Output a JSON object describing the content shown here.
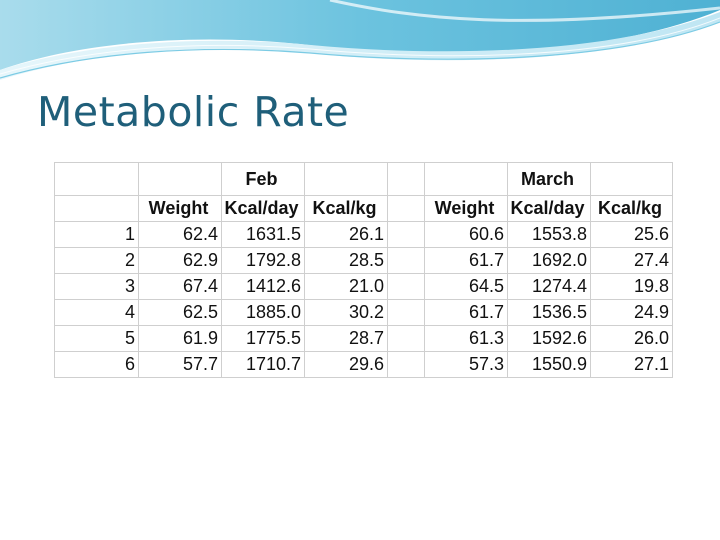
{
  "title": "Metabolic Rate",
  "table": {
    "groups": [
      "Feb",
      "March"
    ],
    "headers": {
      "feb": [
        "Weight",
        "Kcal/day",
        "Kcal/kg"
      ],
      "march": [
        "Weight",
        "Kcal/day",
        "Kcal/kg"
      ]
    },
    "rows": [
      {
        "idx": "1",
        "feb": [
          "62.4",
          "1631.5",
          "26.1"
        ],
        "march": [
          "60.6",
          "1553.8",
          "25.6"
        ]
      },
      {
        "idx": "2",
        "feb": [
          "62.9",
          "1792.8",
          "28.5"
        ],
        "march": [
          "61.7",
          "1692.0",
          "27.4"
        ]
      },
      {
        "idx": "3",
        "feb": [
          "67.4",
          "1412.6",
          "21.0"
        ],
        "march": [
          "64.5",
          "1274.4",
          "19.8"
        ]
      },
      {
        "idx": "4",
        "feb": [
          "62.5",
          "1885.0",
          "30.2"
        ],
        "march": [
          "61.7",
          "1536.5",
          "24.9"
        ]
      },
      {
        "idx": "5",
        "feb": [
          "61.9",
          "1775.5",
          "28.7"
        ],
        "march": [
          "61.3",
          "1592.6",
          "26.0"
        ]
      },
      {
        "idx": "6",
        "feb": [
          "57.7",
          "1710.7",
          "29.6"
        ],
        "march": [
          "57.3",
          "1550.9",
          "27.1"
        ]
      }
    ]
  },
  "colors": {
    "title": "#1f5f7a",
    "banner_dark": "#5fb6d6",
    "banner_light": "#c9ecf6",
    "grid": "#cfcfcf"
  }
}
